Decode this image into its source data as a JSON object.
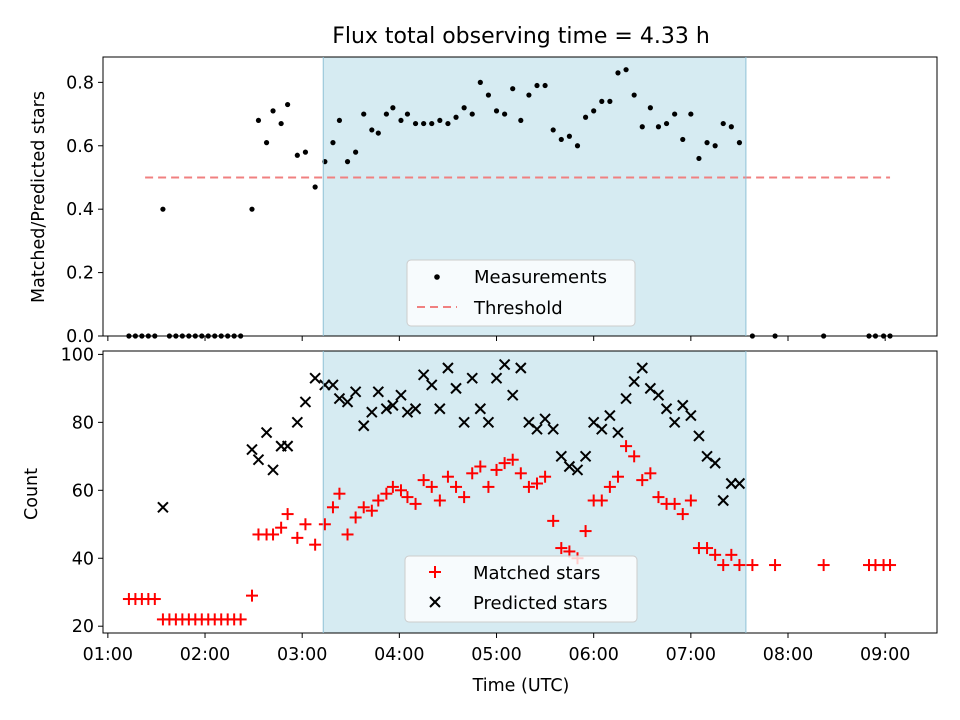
{
  "chart_data": [
    {
      "type": "scatter",
      "title": "Flux total observing time = 4.33 h",
      "xlabel": "",
      "ylabel": "Matched/Predicted stars",
      "ylim": [
        0,
        0.88
      ],
      "yticks": [
        "0.0",
        "0.2",
        "0.4",
        "0.6",
        "0.8"
      ],
      "shaded_region": {
        "start": "03:13",
        "end": "07:34",
        "color": "#add8e6"
      },
      "legend": {
        "placement": "lower-center",
        "entries": [
          "Measurements",
          "Threshold"
        ]
      },
      "threshold": {
        "name": "Threshold",
        "value": 0.5,
        "x_start": "01:23",
        "x_end": "09:03",
        "color": "#f08080"
      },
      "series": [
        {
          "name": "Measurements",
          "color": "#000000",
          "points": [
            [
              "01:13",
              0.0
            ],
            [
              "01:17",
              0.0
            ],
            [
              "01:21",
              0.0
            ],
            [
              "01:25",
              0.0
            ],
            [
              "01:29",
              0.0
            ],
            [
              "01:34",
              0.4
            ],
            [
              "01:38",
              0.0
            ],
            [
              "01:42",
              0.0
            ],
            [
              "01:46",
              0.0
            ],
            [
              "01:50",
              0.0
            ],
            [
              "01:54",
              0.0
            ],
            [
              "01:58",
              0.0
            ],
            [
              "02:02",
              0.0
            ],
            [
              "02:06",
              0.0
            ],
            [
              "02:10",
              0.0
            ],
            [
              "02:14",
              0.0
            ],
            [
              "02:18",
              0.0
            ],
            [
              "02:22",
              0.0
            ],
            [
              "02:29",
              0.4
            ],
            [
              "02:33",
              0.68
            ],
            [
              "02:38",
              0.61
            ],
            [
              "02:42",
              0.71
            ],
            [
              "02:47",
              0.67
            ],
            [
              "02:51",
              0.73
            ],
            [
              "02:57",
              0.57
            ],
            [
              "03:02",
              0.58
            ],
            [
              "03:08",
              0.47
            ],
            [
              "03:14",
              0.55
            ],
            [
              "03:19",
              0.61
            ],
            [
              "03:23",
              0.68
            ],
            [
              "03:28",
              0.55
            ],
            [
              "03:33",
              0.58
            ],
            [
              "03:38",
              0.7
            ],
            [
              "03:43",
              0.65
            ],
            [
              "03:47",
              0.64
            ],
            [
              "03:52",
              0.7
            ],
            [
              "03:56",
              0.72
            ],
            [
              "04:01",
              0.68
            ],
            [
              "04:05",
              0.7
            ],
            [
              "04:10",
              0.67
            ],
            [
              "04:15",
              0.67
            ],
            [
              "04:20",
              0.67
            ],
            [
              "04:25",
              0.68
            ],
            [
              "04:30",
              0.67
            ],
            [
              "04:35",
              0.69
            ],
            [
              "04:40",
              0.72
            ],
            [
              "04:45",
              0.7
            ],
            [
              "04:50",
              0.8
            ],
            [
              "04:55",
              0.76
            ],
            [
              "05:00",
              0.71
            ],
            [
              "05:05",
              0.7
            ],
            [
              "05:10",
              0.78
            ],
            [
              "05:15",
              0.68
            ],
            [
              "05:20",
              0.76
            ],
            [
              "05:25",
              0.79
            ],
            [
              "05:30",
              0.79
            ],
            [
              "05:35",
              0.65
            ],
            [
              "05:40",
              0.62
            ],
            [
              "05:45",
              0.63
            ],
            [
              "05:50",
              0.6
            ],
            [
              "05:55",
              0.69
            ],
            [
              "06:00",
              0.71
            ],
            [
              "06:05",
              0.74
            ],
            [
              "06:10",
              0.74
            ],
            [
              "06:15",
              0.83
            ],
            [
              "06:20",
              0.84
            ],
            [
              "06:25",
              0.76
            ],
            [
              "06:30",
              0.66
            ],
            [
              "06:35",
              0.72
            ],
            [
              "06:40",
              0.66
            ],
            [
              "06:45",
              0.67
            ],
            [
              "06:50",
              0.7
            ],
            [
              "06:55",
              0.62
            ],
            [
              "07:00",
              0.7
            ],
            [
              "07:05",
              0.56
            ],
            [
              "07:10",
              0.61
            ],
            [
              "07:15",
              0.6
            ],
            [
              "07:20",
              0.67
            ],
            [
              "07:25",
              0.66
            ],
            [
              "07:30",
              0.61
            ],
            [
              "07:38",
              0.0
            ],
            [
              "07:52",
              0.0
            ],
            [
              "08:22",
              0.0
            ],
            [
              "08:50",
              0.0
            ],
            [
              "08:54",
              0.0
            ],
            [
              "08:59",
              0.0
            ],
            [
              "09:03",
              0.0
            ]
          ]
        }
      ]
    },
    {
      "type": "scatter",
      "title": "",
      "xlabel": "Time (UTC)",
      "ylabel": "Count",
      "ylim": [
        18,
        101
      ],
      "yticks": [
        "20",
        "40",
        "60",
        "80",
        "100"
      ],
      "xlim": [
        "00:57",
        "09:32"
      ],
      "xticks": [
        "01:00",
        "02:00",
        "03:00",
        "04:00",
        "05:00",
        "06:00",
        "07:00",
        "08:00",
        "09:00"
      ],
      "shaded_region": {
        "start": "03:13",
        "end": "07:34",
        "color": "#add8e6"
      },
      "legend": {
        "placement": "lower-center",
        "entries": [
          "Matched stars",
          "Predicted stars"
        ]
      },
      "series": [
        {
          "name": "Matched stars",
          "marker": "+",
          "color": "#ff0000",
          "points": [
            [
              "01:13",
              28
            ],
            [
              "01:17",
              28
            ],
            [
              "01:21",
              28
            ],
            [
              "01:25",
              28
            ],
            [
              "01:29",
              28
            ],
            [
              "01:34",
              22
            ],
            [
              "01:38",
              22
            ],
            [
              "01:42",
              22
            ],
            [
              "01:46",
              22
            ],
            [
              "01:50",
              22
            ],
            [
              "01:54",
              22
            ],
            [
              "01:58",
              22
            ],
            [
              "02:02",
              22
            ],
            [
              "02:06",
              22
            ],
            [
              "02:10",
              22
            ],
            [
              "02:14",
              22
            ],
            [
              "02:18",
              22
            ],
            [
              "02:22",
              22
            ],
            [
              "02:29",
              29
            ],
            [
              "02:33",
              47
            ],
            [
              "02:38",
              47
            ],
            [
              "02:42",
              47
            ],
            [
              "02:47",
              49
            ],
            [
              "02:51",
              53
            ],
            [
              "02:57",
              46
            ],
            [
              "03:02",
              50
            ],
            [
              "03:08",
              44
            ],
            [
              "03:14",
              50
            ],
            [
              "03:19",
              55
            ],
            [
              "03:23",
              59
            ],
            [
              "03:28",
              47
            ],
            [
              "03:33",
              52
            ],
            [
              "03:38",
              55
            ],
            [
              "03:43",
              54
            ],
            [
              "03:47",
              57
            ],
            [
              "03:52",
              59
            ],
            [
              "03:56",
              61
            ],
            [
              "04:01",
              60
            ],
            [
              "04:05",
              58
            ],
            [
              "04:10",
              56
            ],
            [
              "04:15",
              63
            ],
            [
              "04:20",
              61
            ],
            [
              "04:25",
              57
            ],
            [
              "04:30",
              64
            ],
            [
              "04:35",
              61
            ],
            [
              "04:40",
              58
            ],
            [
              "04:45",
              65
            ],
            [
              "04:50",
              67
            ],
            [
              "04:55",
              61
            ],
            [
              "05:00",
              66
            ],
            [
              "05:05",
              68
            ],
            [
              "05:10",
              69
            ],
            [
              "05:15",
              65
            ],
            [
              "05:20",
              61
            ],
            [
              "05:25",
              62
            ],
            [
              "05:30",
              64
            ],
            [
              "05:35",
              51
            ],
            [
              "05:40",
              43
            ],
            [
              "05:45",
              42
            ],
            [
              "05:50",
              40
            ],
            [
              "05:55",
              48
            ],
            [
              "06:00",
              57
            ],
            [
              "06:05",
              57
            ],
            [
              "06:10",
              61
            ],
            [
              "06:15",
              64
            ],
            [
              "06:20",
              73
            ],
            [
              "06:25",
              70
            ],
            [
              "06:30",
              63
            ],
            [
              "06:35",
              65
            ],
            [
              "06:40",
              58
            ],
            [
              "06:45",
              56
            ],
            [
              "06:50",
              56
            ],
            [
              "06:55",
              53
            ],
            [
              "07:00",
              57
            ],
            [
              "07:05",
              43
            ],
            [
              "07:10",
              43
            ],
            [
              "07:15",
              41
            ],
            [
              "07:20",
              38
            ],
            [
              "07:25",
              41
            ],
            [
              "07:30",
              38
            ],
            [
              "07:38",
              38
            ],
            [
              "07:52",
              38
            ],
            [
              "08:22",
              38
            ],
            [
              "08:50",
              38
            ],
            [
              "08:54",
              38
            ],
            [
              "08:59",
              38
            ],
            [
              "09:03",
              38
            ]
          ]
        },
        {
          "name": "Predicted stars",
          "marker": "x",
          "color": "#000000",
          "points": [
            [
              "01:34",
              55
            ],
            [
              "02:29",
              72
            ],
            [
              "02:33",
              69
            ],
            [
              "02:38",
              77
            ],
            [
              "02:42",
              66
            ],
            [
              "02:47",
              73
            ],
            [
              "02:51",
              73
            ],
            [
              "02:57",
              80
            ],
            [
              "03:02",
              86
            ],
            [
              "03:08",
              93
            ],
            [
              "03:14",
              91
            ],
            [
              "03:19",
              91
            ],
            [
              "03:23",
              87
            ],
            [
              "03:28",
              86
            ],
            [
              "03:33",
              89
            ],
            [
              "03:38",
              79
            ],
            [
              "03:43",
              83
            ],
            [
              "03:47",
              89
            ],
            [
              "03:52",
              84
            ],
            [
              "03:56",
              85
            ],
            [
              "04:01",
              88
            ],
            [
              "04:05",
              83
            ],
            [
              "04:10",
              84
            ],
            [
              "04:15",
              94
            ],
            [
              "04:20",
              91
            ],
            [
              "04:25",
              84
            ],
            [
              "04:30",
              96
            ],
            [
              "04:35",
              90
            ],
            [
              "04:40",
              80
            ],
            [
              "04:45",
              93
            ],
            [
              "04:50",
              84
            ],
            [
              "04:55",
              80
            ],
            [
              "05:00",
              93
            ],
            [
              "05:05",
              97
            ],
            [
              "05:10",
              88
            ],
            [
              "05:15",
              96
            ],
            [
              "05:20",
              80
            ],
            [
              "05:25",
              78
            ],
            [
              "05:30",
              81
            ],
            [
              "05:35",
              78
            ],
            [
              "05:40",
              70
            ],
            [
              "05:45",
              67
            ],
            [
              "05:50",
              66
            ],
            [
              "05:55",
              70
            ],
            [
              "06:00",
              80
            ],
            [
              "06:05",
              78
            ],
            [
              "06:10",
              82
            ],
            [
              "06:15",
              77
            ],
            [
              "06:20",
              87
            ],
            [
              "06:25",
              92
            ],
            [
              "06:30",
              96
            ],
            [
              "06:35",
              90
            ],
            [
              "06:40",
              88
            ],
            [
              "06:45",
              84
            ],
            [
              "06:50",
              80
            ],
            [
              "06:55",
              85
            ],
            [
              "07:00",
              82
            ],
            [
              "07:05",
              76
            ],
            [
              "07:10",
              70
            ],
            [
              "07:15",
              68
            ],
            [
              "07:20",
              57
            ],
            [
              "07:25",
              62
            ],
            [
              "07:30",
              62
            ]
          ]
        }
      ]
    }
  ]
}
